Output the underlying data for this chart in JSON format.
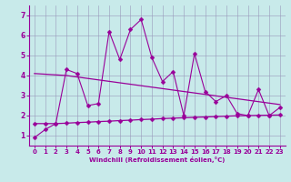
{
  "xlabel": "Windchill (Refroidissement éolien,°C)",
  "background_color": "#c8eaea",
  "line_color": "#990099",
  "xlim": [
    -0.5,
    23.5
  ],
  "ylim": [
    0.5,
    7.5
  ],
  "yticks": [
    1,
    2,
    3,
    4,
    5,
    6,
    7
  ],
  "xticks": [
    0,
    1,
    2,
    3,
    4,
    5,
    6,
    7,
    8,
    9,
    10,
    11,
    12,
    13,
    14,
    15,
    16,
    17,
    18,
    19,
    20,
    21,
    22,
    23
  ],
  "series1_x": [
    0,
    1,
    2,
    3,
    4,
    5,
    6,
    7,
    8,
    9,
    10,
    11,
    12,
    13,
    14,
    15,
    16,
    17,
    18,
    19,
    20,
    21,
    22,
    23
  ],
  "series1_y": [
    0.9,
    1.3,
    1.6,
    4.3,
    4.1,
    2.5,
    2.6,
    6.2,
    4.8,
    6.3,
    6.8,
    4.9,
    3.7,
    4.2,
    2.0,
    5.1,
    3.2,
    2.7,
    3.0,
    2.1,
    2.0,
    3.3,
    2.0,
    2.4
  ],
  "series2_x": [
    0,
    1,
    2,
    3,
    4,
    5,
    6,
    7,
    8,
    9,
    10,
    11,
    12,
    13,
    14,
    15,
    16,
    17,
    18,
    19,
    20,
    21,
    22,
    23
  ],
  "series2_y": [
    1.6,
    1.6,
    1.6,
    1.62,
    1.65,
    1.67,
    1.7,
    1.72,
    1.75,
    1.77,
    1.8,
    1.82,
    1.85,
    1.87,
    1.89,
    1.91,
    1.93,
    1.95,
    1.97,
    1.99,
    2.0,
    2.01,
    2.02,
    2.03
  ],
  "series3_x": [
    0,
    3,
    23
  ],
  "series3_y": [
    4.1,
    4.0,
    2.55
  ],
  "grid_color": "#9999bb",
  "marker": "D",
  "marker_size": 2.5
}
